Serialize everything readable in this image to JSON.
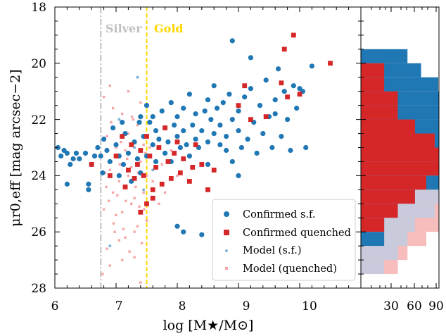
{
  "chart_data": {
    "type": "scatter",
    "xlabel": "log [M★/M⊙]",
    "ylabel": "μr0,eff [mag arcsec−2]",
    "xlim": [
      6,
      11
    ],
    "ylim": [
      28,
      18
    ],
    "x_ticks": [
      "6",
      "7",
      "8",
      "9",
      "10"
    ],
    "y_ticks": [
      "18",
      "20",
      "22",
      "24",
      "26",
      "28"
    ],
    "thresholds": [
      {
        "label": "Silver",
        "x": 6.75,
        "color": "#bfbfbf",
        "style": "dash-dot"
      },
      {
        "label": "Gold",
        "x": 7.5,
        "color": "#ffd700",
        "style": "dashed"
      }
    ],
    "legend": {
      "placement": "lower-right",
      "entries": [
        "Confirmed s.f.",
        "Confirmed quenched",
        "Model (s.f.)",
        "Model (quenched)"
      ]
    },
    "colors": {
      "sf": "#1f77b4",
      "quenched": "#d62728",
      "model_sf": "#7fb3d8",
      "model_q": "#f4a6a6"
    },
    "series": [
      {
        "name": "Confirmed s.f.",
        "marker": "circle",
        "points": [
          [
            6.05,
            23.0
          ],
          [
            6.1,
            23.3
          ],
          [
            6.15,
            23.1
          ],
          [
            6.2,
            23.2
          ],
          [
            6.25,
            23.6
          ],
          [
            6.3,
            23.4
          ],
          [
            6.35,
            23.2
          ],
          [
            6.2,
            24.3
          ],
          [
            6.4,
            23.4
          ],
          [
            6.5,
            23.2
          ],
          [
            6.55,
            24.3
          ],
          [
            6.55,
            24.5
          ],
          [
            6.6,
            23.6
          ],
          [
            6.65,
            23.3
          ],
          [
            6.7,
            23.0
          ],
          [
            6.75,
            23.3
          ],
          [
            6.78,
            23.9
          ],
          [
            6.8,
            22.7
          ],
          [
            6.85,
            23.1
          ],
          [
            6.9,
            23.5
          ],
          [
            6.95,
            22.3
          ],
          [
            7.0,
            22.9
          ],
          [
            7.05,
            23.3
          ],
          [
            7.05,
            24.0
          ],
          [
            7.1,
            22.1
          ],
          [
            7.12,
            23.6
          ],
          [
            7.15,
            22.5
          ],
          [
            7.2,
            23.2
          ],
          [
            7.25,
            24.2
          ],
          [
            7.3,
            22.8
          ],
          [
            7.35,
            23.4
          ],
          [
            7.38,
            22.1
          ],
          [
            7.4,
            21.9
          ],
          [
            7.4,
            23.9
          ],
          [
            7.45,
            22.6
          ],
          [
            7.5,
            23.3
          ],
          [
            7.5,
            21.5
          ],
          [
            7.55,
            22.1
          ],
          [
            7.6,
            22.9
          ],
          [
            7.6,
            21.9
          ],
          [
            7.65,
            23.5
          ],
          [
            7.65,
            22.4
          ],
          [
            7.7,
            22.7
          ],
          [
            7.75,
            21.7
          ],
          [
            7.8,
            22.3
          ],
          [
            7.8,
            23.2
          ],
          [
            7.85,
            22.8
          ],
          [
            7.9,
            21.4
          ],
          [
            7.9,
            23.5
          ],
          [
            7.95,
            22.2
          ],
          [
            8.0,
            22.6
          ],
          [
            8.0,
            21.9
          ],
          [
            8.05,
            23.0
          ],
          [
            8.1,
            21.6
          ],
          [
            8.1,
            22.4
          ],
          [
            8.15,
            22.9
          ],
          [
            8.2,
            21.1
          ],
          [
            8.2,
            23.3
          ],
          [
            8.25,
            22.2
          ],
          [
            8.3,
            22.7
          ],
          [
            8.3,
            21.8
          ],
          [
            8.35,
            23.0
          ],
          [
            8.4,
            22.4
          ],
          [
            8.45,
            21.7
          ],
          [
            8.5,
            22.8
          ],
          [
            8.5,
            21.3
          ],
          [
            8.55,
            22.0
          ],
          [
            8.6,
            22.5
          ],
          [
            8.6,
            20.8
          ],
          [
            8.65,
            21.6
          ],
          [
            8.7,
            22.9
          ],
          [
            8.7,
            22.2
          ],
          [
            8.75,
            21.4
          ],
          [
            8.8,
            22.6
          ],
          [
            8.85,
            21.1
          ],
          [
            8.9,
            22.0
          ],
          [
            8.9,
            23.5
          ],
          [
            9.0,
            21.7
          ],
          [
            9.0,
            22.4
          ],
          [
            9.05,
            23.0
          ],
          [
            9.1,
            21.2
          ],
          [
            9.15,
            22.7
          ],
          [
            9.2,
            20.9
          ],
          [
            9.25,
            22.1
          ],
          [
            9.3,
            23.2
          ],
          [
            9.35,
            21.5
          ],
          [
            9.4,
            22.5
          ],
          [
            9.45,
            20.6
          ],
          [
            9.5,
            21.9
          ],
          [
            9.55,
            23.0
          ],
          [
            9.6,
            21.3
          ],
          [
            9.65,
            20.2
          ],
          [
            9.7,
            22.6
          ],
          [
            9.75,
            21.0
          ],
          [
            9.8,
            22.0
          ],
          [
            9.85,
            23.1
          ],
          [
            9.9,
            20.8
          ],
          [
            9.95,
            21.6
          ],
          [
            10.0,
            20.9
          ],
          [
            10.05,
            21.0
          ],
          [
            10.1,
            23.0
          ],
          [
            8.0,
            25.8
          ],
          [
            8.1,
            26.0
          ],
          [
            8.4,
            26.1
          ],
          [
            9.0,
            24.0
          ],
          [
            9.2,
            19.8
          ],
          [
            9.6,
            21.8
          ],
          [
            8.9,
            19.2
          ],
          [
            10.2,
            20.1
          ],
          [
            8.5,
            23.6
          ],
          [
            8.8,
            23.1
          ]
        ]
      },
      {
        "name": "Confirmed quenched",
        "marker": "square",
        "points": [
          [
            6.6,
            23.6
          ],
          [
            6.9,
            24.0
          ],
          [
            7.0,
            23.3
          ],
          [
            7.1,
            22.6
          ],
          [
            7.15,
            24.4
          ],
          [
            7.2,
            23.8
          ],
          [
            7.25,
            22.9
          ],
          [
            7.3,
            24.1
          ],
          [
            7.35,
            23.6
          ],
          [
            7.4,
            23.1
          ],
          [
            7.45,
            24.0
          ],
          [
            7.5,
            22.6
          ],
          [
            7.5,
            25.0
          ],
          [
            7.55,
            23.3
          ],
          [
            7.6,
            24.5
          ],
          [
            7.65,
            23.7
          ],
          [
            7.7,
            23.0
          ],
          [
            7.75,
            24.3
          ],
          [
            7.8,
            22.3
          ],
          [
            7.85,
            23.5
          ],
          [
            7.9,
            24.1
          ],
          [
            7.95,
            23.2
          ],
          [
            8.0,
            22.8
          ],
          [
            8.05,
            23.9
          ],
          [
            8.1,
            23.4
          ],
          [
            8.2,
            24.2
          ],
          [
            8.25,
            23.7
          ],
          [
            8.3,
            22.9
          ],
          [
            8.4,
            23.6
          ],
          [
            8.5,
            24.5
          ],
          [
            8.6,
            23.8
          ],
          [
            9.0,
            21.5
          ],
          [
            9.2,
            22.0
          ],
          [
            9.45,
            21.9
          ],
          [
            9.7,
            20.7
          ],
          [
            9.75,
            19.5
          ],
          [
            9.8,
            21.2
          ],
          [
            10.0,
            21.1
          ],
          [
            10.5,
            20.0
          ],
          [
            9.9,
            19.0
          ],
          [
            9.1,
            20.8
          ],
          [
            7.4,
            25.3
          ],
          [
            7.6,
            24.8
          ]
        ]
      },
      {
        "name": "Model (s.f.)",
        "marker": "small-circle",
        "points": [
          [
            7.35,
            20.5
          ],
          [
            6.9,
            26.5
          ],
          [
            7.05,
            22.0
          ],
          [
            7.3,
            23.0
          ],
          [
            7.45,
            24.5
          ],
          [
            7.6,
            23.8
          ]
        ]
      },
      {
        "name": "Model (quenched)",
        "marker": "small-square",
        "points": [
          [
            6.8,
            21.2
          ],
          [
            6.85,
            22.6
          ],
          [
            6.9,
            23.8
          ],
          [
            6.95,
            24.6
          ],
          [
            7.0,
            25.4
          ],
          [
            7.05,
            26.3
          ],
          [
            7.1,
            21.8
          ],
          [
            7.15,
            23.1
          ],
          [
            7.2,
            24.0
          ],
          [
            7.25,
            25.0
          ],
          [
            7.3,
            26.0
          ],
          [
            7.35,
            22.2
          ],
          [
            7.4,
            23.5
          ],
          [
            7.45,
            24.6
          ],
          [
            7.5,
            25.6
          ],
          [
            6.8,
            25.2
          ],
          [
            6.85,
            26.6
          ],
          [
            6.9,
            27.2
          ],
          [
            6.95,
            21.6
          ],
          [
            7.0,
            23.0
          ],
          [
            7.05,
            24.2
          ],
          [
            7.1,
            25.3
          ],
          [
            7.15,
            26.2
          ],
          [
            7.2,
            22.5
          ],
          [
            7.25,
            23.7
          ],
          [
            7.3,
            24.8
          ],
          [
            7.35,
            25.8
          ],
          [
            7.4,
            21.4
          ],
          [
            7.45,
            22.9
          ],
          [
            7.5,
            24.0
          ],
          [
            6.82,
            23.9
          ],
          [
            6.88,
            24.9
          ],
          [
            6.92,
            22.1
          ],
          [
            6.98,
            26.0
          ],
          [
            7.02,
            24.7
          ],
          [
            7.08,
            22.8
          ],
          [
            7.12,
            25.9
          ],
          [
            7.18,
            23.4
          ],
          [
            7.22,
            26.7
          ],
          [
            7.28,
            22.0
          ],
          [
            7.32,
            24.4
          ],
          [
            7.38,
            25.1
          ],
          [
            7.42,
            26.4
          ],
          [
            7.48,
            23.2
          ],
          [
            6.78,
            27.5
          ],
          [
            6.84,
            24.4
          ],
          [
            6.96,
            25.7
          ],
          [
            7.06,
            23.6
          ],
          [
            7.16,
            24.9
          ],
          [
            7.26,
            21.9
          ],
          [
            7.36,
            23.9
          ],
          [
            7.46,
            25.2
          ],
          [
            7.55,
            23.0
          ],
          [
            7.6,
            24.2
          ],
          [
            7.65,
            22.4
          ],
          [
            7.7,
            25.0
          ],
          [
            7.75,
            23.6
          ],
          [
            7.8,
            24.6
          ],
          [
            7.9,
            23.1
          ],
          [
            8.0,
            24.0
          ],
          [
            7.2,
            21.0
          ],
          [
            6.9,
            20.8
          ],
          [
            7.1,
            27.0
          ],
          [
            7.3,
            26.9
          ],
          [
            7.4,
            27.8
          ]
        ]
      }
    ],
    "histogram": {
      "orientation": "horizontal",
      "x_ticks": [
        "30",
        "60",
        "90"
      ],
      "x_scale": "log",
      "bin_width": 0.5,
      "bins": [
        {
          "lo": 19.5,
          "hi": 20.0,
          "sf": 3,
          "q": 0,
          "model_sf": 1,
          "model_q": 1
        },
        {
          "lo": 20.0,
          "hi": 20.5,
          "sf": 5,
          "q": 1,
          "model_sf": 1,
          "model_q": 2
        },
        {
          "lo": 20.5,
          "hi": 21.0,
          "sf": 9,
          "q": 1,
          "model_sf": 2,
          "model_q": 3
        },
        {
          "lo": 21.0,
          "hi": 21.5,
          "sf": 20,
          "q": 2,
          "model_sf": 4,
          "model_q": 18
        },
        {
          "lo": 21.5,
          "hi": 22.0,
          "sf": 45,
          "q": 2,
          "model_sf": 10,
          "model_q": 72
        },
        {
          "lo": 22.0,
          "hi": 22.5,
          "sf": 58,
          "q": 4,
          "model_sf": 30,
          "model_q": 28
        },
        {
          "lo": 22.5,
          "hi": 23.0,
          "sf": 54,
          "q": 8,
          "model_sf": 60,
          "model_q": 90
        },
        {
          "lo": 23.0,
          "hi": 23.5,
          "sf": 55,
          "q": 20,
          "model_sf": 70,
          "model_q": 85
        },
        {
          "lo": 23.5,
          "hi": 24.0,
          "sf": 40,
          "q": 17,
          "model_sf": 65,
          "model_q": 70
        },
        {
          "lo": 24.0,
          "hi": 24.5,
          "sf": 12,
          "q": 6,
          "model_sf": 25,
          "model_q": 20
        },
        {
          "lo": 24.5,
          "hi": 25.0,
          "sf": 4,
          "q": 4,
          "model_sf": 10,
          "model_q": 20
        },
        {
          "lo": 25.0,
          "hi": 25.5,
          "sf": 2,
          "q": 2,
          "model_sf": 8,
          "model_q": 18
        },
        {
          "lo": 25.5,
          "hi": 26.0,
          "sf": 1,
          "q": 1,
          "model_sf": 4,
          "model_q": 14
        },
        {
          "lo": 26.0,
          "hi": 26.5,
          "sf": 1,
          "q": 0,
          "model_sf": 3,
          "model_q": 6
        },
        {
          "lo": 26.5,
          "hi": 27.0,
          "sf": 0,
          "q": 0,
          "model_sf": 2,
          "model_q": 3
        },
        {
          "lo": 27.0,
          "hi": 27.5,
          "sf": 0,
          "q": 0,
          "model_sf": 1,
          "model_q": 2
        }
      ]
    }
  }
}
